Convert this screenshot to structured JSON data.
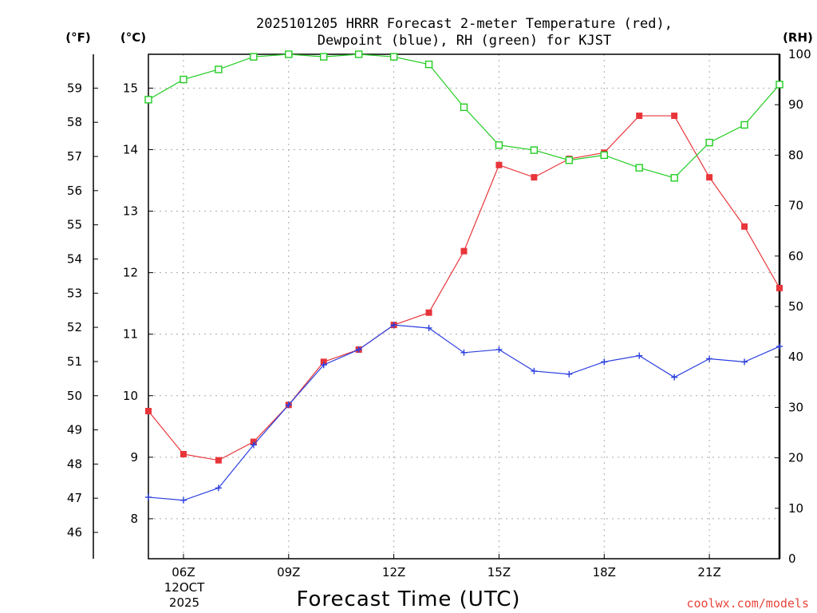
{
  "chart_data": {
    "type": "line",
    "title_line1": "2025101205 HRRR Forecast 2-meter Temperature (red),",
    "title_line2": "Dewpoint (blue), RH (green) for KJST",
    "unit_left_f": "(°F)",
    "unit_left_c": "(°C)",
    "unit_right": "(RH)",
    "xlabel": "Forecast Time (UTC)",
    "credit": "coolwx.com/models",
    "x_date_line1": "12OCT",
    "x_date_line2": "2025",
    "x": [
      5,
      6,
      7,
      8,
      9,
      10,
      11,
      12,
      13,
      14,
      15,
      16,
      17,
      18,
      19,
      20,
      21,
      22,
      23
    ],
    "x_ticks": [
      {
        "x": 6,
        "label": "06Z"
      },
      {
        "x": 9,
        "label": "09Z"
      },
      {
        "x": 12,
        "label": "12Z"
      },
      {
        "x": 15,
        "label": "15Z"
      },
      {
        "x": 18,
        "label": "18Z"
      },
      {
        "x": 21,
        "label": "21Z"
      }
    ],
    "x_range": [
      5,
      23
    ],
    "celsius_range": [
      7.35,
      15.55
    ],
    "celsius_ticks": [
      "8",
      "9",
      "10",
      "11",
      "12",
      "13",
      "14",
      "15"
    ],
    "fahrenheit_ticks": [
      "46",
      "47",
      "48",
      "49",
      "50",
      "51",
      "52",
      "53",
      "54",
      "55",
      "56",
      "57",
      "58",
      "59"
    ],
    "rh_range": [
      0,
      100
    ],
    "rh_ticks": [
      "0",
      "10",
      "20",
      "30",
      "40",
      "50",
      "60",
      "70",
      "80",
      "90",
      "100"
    ],
    "series": [
      {
        "name": "Temperature",
        "color": "#e8353a",
        "marker": "filled-square",
        "axis": "celsius",
        "values": [
          9.75,
          9.05,
          8.95,
          9.25,
          9.85,
          10.55,
          10.75,
          11.15,
          11.35,
          12.35,
          13.75,
          13.55,
          13.85,
          13.95,
          14.55,
          14.55,
          13.55,
          12.75,
          11.75
        ]
      },
      {
        "name": "Dewpoint",
        "color": "#2b3fe0",
        "marker": "plus",
        "axis": "celsius",
        "values": [
          8.35,
          8.3,
          8.5,
          9.2,
          9.85,
          10.5,
          10.75,
          11.15,
          11.1,
          10.7,
          10.75,
          10.4,
          10.35,
          10.55,
          10.65,
          10.3,
          10.6,
          10.55,
          10.8
        ]
      },
      {
        "name": "RH",
        "color": "#22cc22",
        "marker": "open-square",
        "axis": "rh",
        "values": [
          91,
          95,
          97,
          99.5,
          100,
          99.5,
          100,
          99.5,
          98,
          89.5,
          82,
          81,
          79,
          80,
          77.5,
          75.5,
          82.5,
          86,
          94
        ]
      }
    ],
    "grid": true
  }
}
